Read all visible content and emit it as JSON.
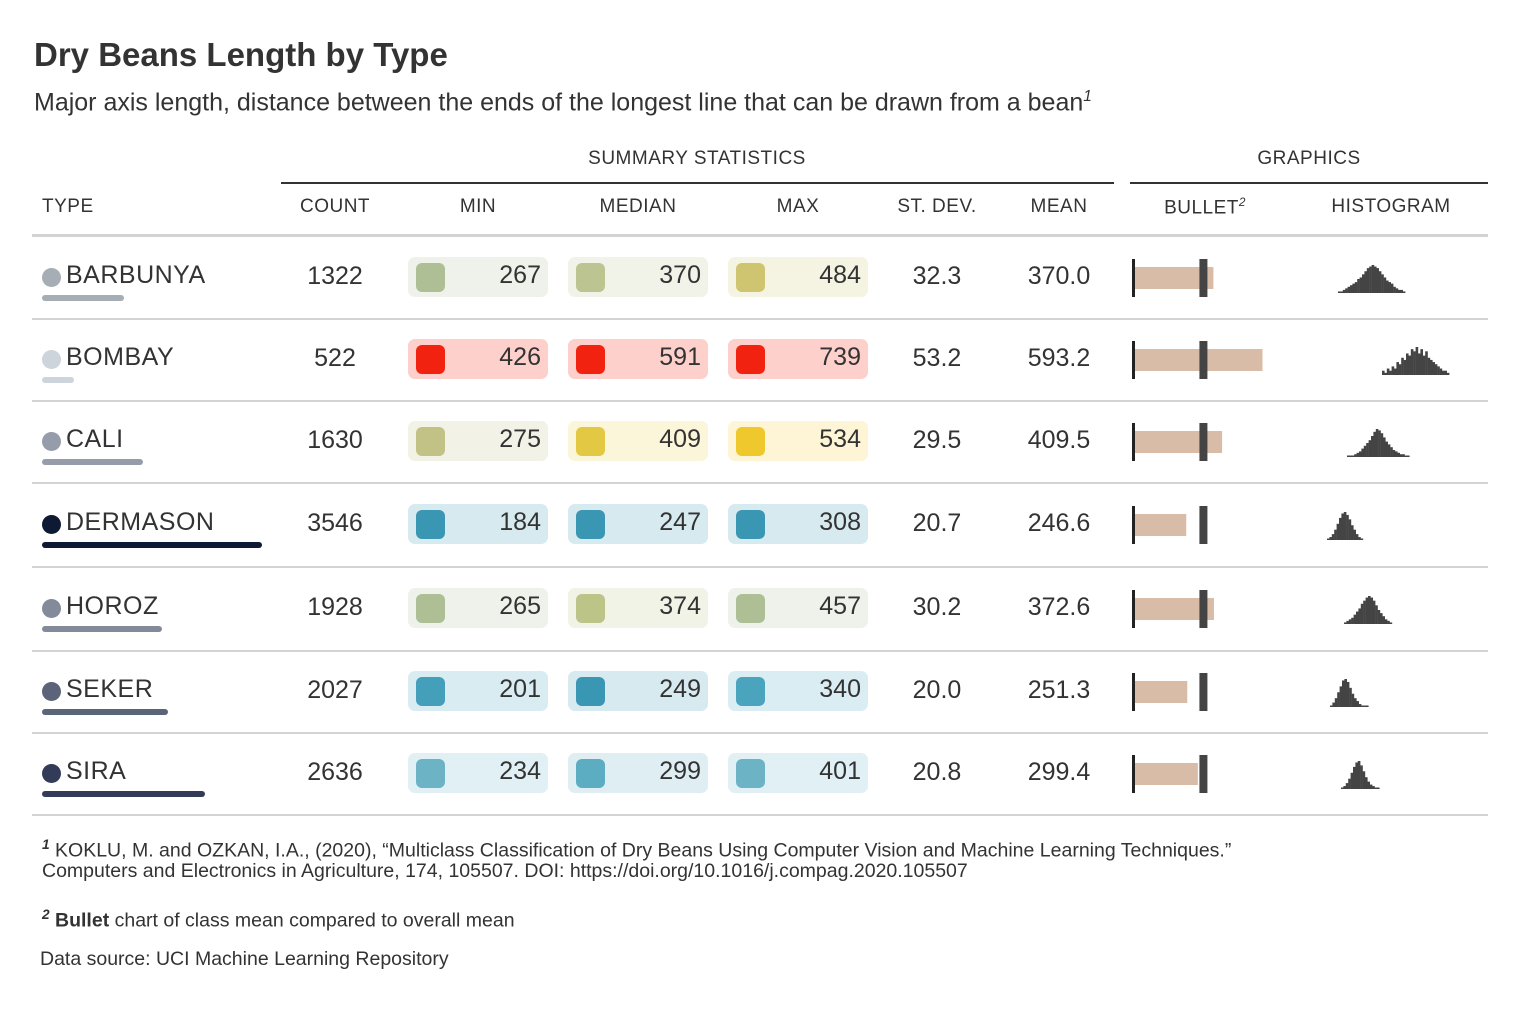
{
  "title": "Dry Beans Length by Type",
  "subtitle": "Major axis length, distance between the ends of the longest line that can be drawn from a bean",
  "subtitle_note": "1",
  "spanners": {
    "summary": "SUMMARY STATISTICS",
    "graphics": "GRAPHICS"
  },
  "columns": {
    "type": "TYPE",
    "count": "COUNT",
    "min": "MIN",
    "median": "MEDIAN",
    "max": "MAX",
    "sd": "ST. DEV.",
    "mean": "MEAN",
    "bullet": "BULLET",
    "bullet_note": "2",
    "histogram": "HISTOGRAM"
  },
  "rows": [
    {
      "type": "BARBUNYA",
      "count": "1322",
      "min": "267",
      "median": "370",
      "max": "484",
      "sd": "32.3",
      "mean": "370.0",
      "dot_color": "#a7adb5",
      "count_bar": 0.373,
      "min_color": "#aebf96",
      "min_bg": "#eff2ea",
      "median_color": "#bcc491",
      "median_bg": "#f1f3e9",
      "max_color": "#cfc46f",
      "max_bg": "#f5f3e2"
    },
    {
      "type": "BOMBAY",
      "count": "522",
      "min": "426",
      "median": "591",
      "max": "739",
      "sd": "53.2",
      "mean": "593.2",
      "dot_color": "#ced4dc",
      "count_bar": 0.147,
      "min_color": "#f22211",
      "min_bg": "#fdd0cb",
      "median_color": "#f22211",
      "median_bg": "#fdd0cb",
      "max_color": "#f22211",
      "max_bg": "#fdd0cb"
    },
    {
      "type": "CALI",
      "count": "1630",
      "min": "275",
      "median": "409",
      "max": "534",
      "sd": "29.5",
      "mean": "409.5",
      "dot_color": "#969ca9",
      "count_bar": 0.46,
      "min_color": "#c2c287",
      "min_bg": "#f2f2e6",
      "median_color": "#e3c844",
      "median_bg": "#fbf5d9",
      "max_color": "#eec82c",
      "max_bg": "#fdf5d5"
    },
    {
      "type": "DERMASON",
      "count": "3546",
      "min": "184",
      "median": "247",
      "max": "308",
      "sd": "20.7",
      "mean": "246.6",
      "dot_color": "#0e1a33",
      "count_bar": 1.0,
      "min_color": "#3a97b3",
      "min_bg": "#d7eaf0",
      "median_color": "#3a97b3",
      "median_bg": "#d7eaf0",
      "max_color": "#3a97b3",
      "max_bg": "#d7eaf0"
    },
    {
      "type": "HOROZ",
      "count": "1928",
      "min": "265",
      "median": "374",
      "max": "457",
      "sd": "30.2",
      "mean": "372.6",
      "dot_color": "#838a99",
      "count_bar": 0.544,
      "min_color": "#aebf96",
      "min_bg": "#eff2ea",
      "median_color": "#bcc488",
      "median_bg": "#f1f3e7",
      "max_color": "#aebf96",
      "max_bg": "#eff2ea"
    },
    {
      "type": "SEKER",
      "count": "2027",
      "min": "201",
      "median": "249",
      "max": "340",
      "sd": "20.0",
      "mean": "251.3",
      "dot_color": "#5c6479",
      "count_bar": 0.572,
      "min_color": "#449fbb",
      "min_bg": "#d9ecf1",
      "median_color": "#3a97b3",
      "median_bg": "#d7eaf0",
      "max_color": "#4aa4bd",
      "max_bg": "#daedf2"
    },
    {
      "type": "SIRA",
      "count": "2636",
      "min": "234",
      "median": "299",
      "max": "401",
      "sd": "20.8",
      "mean": "299.4",
      "dot_color": "#323c58",
      "count_bar": 0.743,
      "min_color": "#6db3c6",
      "min_bg": "#e1f0f4",
      "median_color": "#5cacc2",
      "median_bg": "#dfeef3",
      "max_color": "#6db3c6",
      "max_bg": "#e1f0f4"
    }
  ],
  "footnotes": {
    "n1_mark": "1",
    "n1_line1": "KOKLU, M. and OZKAN, I.A., (2020), “Multiclass Classification of Dry Beans Using Computer Vision and Machine Learning Techniques.”",
    "n1_line2": "Computers and Electronics in Agriculture, 174, 105507. DOI: https://doi.org/10.1016/j.compag.2020.105507",
    "n2_mark": "2",
    "n2_bold": "Bullet",
    "n2_rest": " chart of class mean compared to overall mean",
    "source": "Data source: UCI Machine Learning Repository"
  },
  "colors": {
    "bullet_bar": "#d8bca7",
    "bullet_marker": "#444444",
    "histogram": "#444444",
    "rule": "#d3d3d3"
  },
  "chart_data": {
    "type": "table",
    "title": "Dry Beans Length by Type",
    "bullet": {
      "overall_mean": 320.1,
      "axis": [
        0,
        600
      ]
    },
    "histogram_bin_width": 10,
    "histograms": {
      "BARBUNYA": [
        1,
        1,
        2,
        3,
        4,
        5,
        6,
        7,
        9,
        10,
        12,
        14,
        16,
        17,
        18,
        17,
        16,
        14,
        12,
        10,
        8,
        7,
        6,
        4,
        3,
        2,
        2,
        1
      ],
      "BOMBAY": [
        2,
        1,
        3,
        2,
        4,
        3,
        6,
        5,
        8,
        7,
        10,
        9,
        12,
        11,
        13,
        10,
        12,
        9,
        11,
        8,
        7,
        6,
        5,
        4,
        3,
        2,
        2,
        1
      ],
      "CALI": [
        1,
        1,
        1,
        2,
        3,
        4,
        6,
        8,
        10,
        12,
        15,
        18,
        20,
        19,
        17,
        14,
        11,
        9,
        7,
        5,
        4,
        3,
        2,
        2,
        1,
        1
      ],
      "DERMASON": [
        1,
        2,
        4,
        7,
        11,
        15,
        18,
        19,
        17,
        14,
        10,
        7,
        4,
        2,
        1
      ],
      "HOROZ": [
        1,
        2,
        3,
        4,
        6,
        8,
        10,
        13,
        15,
        17,
        18,
        17,
        15,
        12,
        9,
        7,
        5,
        3,
        2,
        1
      ],
      "SEKER": [
        1,
        3,
        6,
        10,
        14,
        18,
        19,
        17,
        13,
        9,
        6,
        4,
        2,
        1,
        1,
        1
      ],
      "SIRA": [
        1,
        2,
        4,
        7,
        11,
        15,
        18,
        19,
        16,
        12,
        8,
        5,
        3,
        2,
        1,
        1
      ]
    }
  }
}
